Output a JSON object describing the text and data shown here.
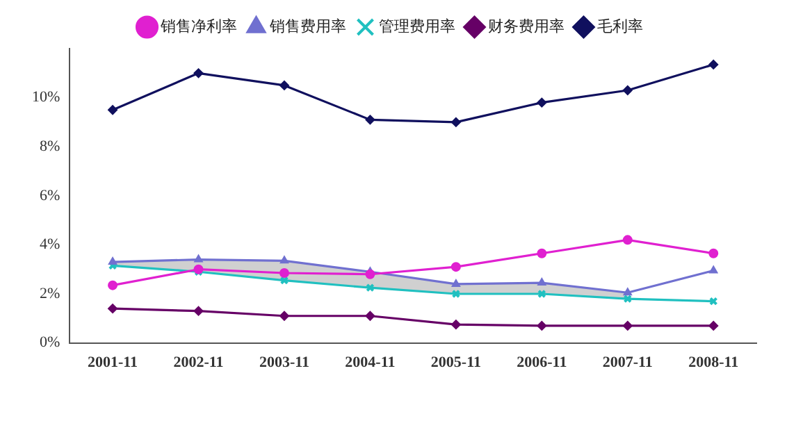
{
  "chart_data": {
    "type": "line",
    "categories": [
      "2001-11",
      "2002-11",
      "2003-11",
      "2004-11",
      "2005-11",
      "2006-11",
      "2007-11",
      "2008-11"
    ],
    "ylim": [
      0,
      12
    ],
    "yticks": [
      {
        "value": 0,
        "label": "0%"
      },
      {
        "value": 2,
        "label": "2%"
      },
      {
        "value": 4,
        "label": "4%"
      },
      {
        "value": 6,
        "label": "6%"
      },
      {
        "value": 8,
        "label": "8%"
      },
      {
        "value": 10,
        "label": "10%"
      }
    ],
    "grid": false,
    "legend": "top",
    "line_style": "solid",
    "series": [
      {
        "name": "销售净利率",
        "color": "#e020d0",
        "marker": "circle",
        "values": [
          2.35,
          3.0,
          2.85,
          2.8,
          3.1,
          3.65,
          4.2,
          3.65
        ]
      },
      {
        "name": "销售费用率",
        "color": "#7070d0",
        "marker": "triangle",
        "values": [
          3.3,
          3.4,
          3.35,
          2.9,
          2.4,
          2.45,
          2.05,
          2.95
        ],
        "lower": [
          3.15,
          2.9,
          2.55,
          2.25,
          2.0,
          2.0,
          1.8,
          null
        ],
        "upper": [
          3.3,
          3.4,
          3.35,
          2.9,
          2.4,
          2.45,
          2.05,
          null
        ]
      },
      {
        "name": "管理费用率",
        "color": "#20c0c0",
        "marker": "cross",
        "values": [
          3.15,
          2.9,
          2.55,
          2.25,
          2.0,
          2.0,
          1.8,
          1.7
        ]
      },
      {
        "name": "财务费用率",
        "color": "#660066",
        "marker": "diamond",
        "values": [
          1.4,
          1.3,
          1.1,
          1.1,
          0.75,
          0.7,
          0.7,
          0.7
        ]
      },
      {
        "name": "毛利率",
        "color": "#10105e",
        "marker": "diamond",
        "values": [
          9.5,
          11.0,
          10.5,
          9.1,
          9.0,
          9.8,
          10.3,
          11.35
        ]
      }
    ]
  }
}
